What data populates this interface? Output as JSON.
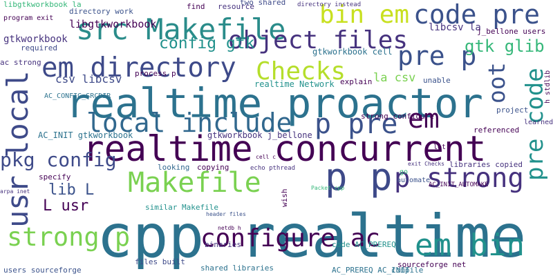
{
  "words": [
    {
      "text": "cpp realtime",
      "color": "#2c728e"
    },
    {
      "text": "realtime proactor",
      "color": "#2c728e"
    },
    {
      "text": "realtime concurrent",
      "color": "#440154"
    },
    {
      "text": "src Makefile",
      "color": "#2a8c8a"
    },
    {
      "text": "bin em",
      "color": "#c8e020"
    },
    {
      "text": "code pre",
      "color": "#3b528b"
    },
    {
      "text": "object files",
      "color": "#46327e"
    },
    {
      "text": "em directory",
      "color": "#3e4a89"
    },
    {
      "text": "pre p",
      "color": "#3b528b"
    },
    {
      "text": "Checks",
      "color": "#b5de2b"
    },
    {
      "text": "local include",
      "color": "#31688e"
    },
    {
      "text": "p pre",
      "color": "#3b528b"
    },
    {
      "text": "em",
      "color": "#440154"
    },
    {
      "text": "gtk glib",
      "color": "#35b779"
    },
    {
      "text": "config gtk",
      "color": "#21918c"
    },
    {
      "text": "libgtkworkbook",
      "color": "#440154"
    },
    {
      "text": "libgtkworkbook la",
      "color": "#35b779"
    },
    {
      "text": "gtkworkbook",
      "color": "#46327e"
    },
    {
      "text": "pkg config",
      "color": "#3e4a89"
    },
    {
      "text": "Makefile",
      "color": "#7ad151"
    },
    {
      "text": "p p",
      "color": "#3e4a89"
    },
    {
      "text": "p strong",
      "color": "#46327e"
    },
    {
      "text": "strong p",
      "color": "#7ad151"
    },
    {
      "text": "configure ac",
      "color": "#440154"
    },
    {
      "text": "em bin",
      "color": "#21918c"
    },
    {
      "text": "lib L",
      "color": "#3b528b"
    },
    {
      "text": "L usr",
      "color": "#440154"
    },
    {
      "text": "usr local",
      "color": "#3e4a89"
    },
    {
      "text": "pre code",
      "color": "#21918c"
    },
    {
      "text": "oot",
      "color": "#3b528b"
    },
    {
      "text": "strong configure",
      "color": "#440154"
    },
    {
      "text": "gtkworkbook j_bellone",
      "color": "#46327e"
    },
    {
      "text": "realtime Network",
      "color": "#21918c"
    },
    {
      "text": "la csv",
      "color": "#7ad151"
    },
    {
      "text": "csv libcsv",
      "color": "#3e4a89"
    },
    {
      "text": "AC_INIT gtkworkbook",
      "color": "#2c728e"
    },
    {
      "text": "libcsv la",
      "color": "#46327e"
    },
    {
      "text": "j_bellone users",
      "color": "#440154"
    },
    {
      "text": "directory work",
      "color": "#3b528b"
    },
    {
      "text": "find",
      "color": "#440154"
    },
    {
      "text": "resource",
      "color": "#46327e"
    },
    {
      "text": "two shared",
      "color": "#3e4a89"
    },
    {
      "text": "similar Makefile",
      "color": "#21918c"
    },
    {
      "text": "shared libraries",
      "color": "#2c728e"
    },
    {
      "text": "users sourceforge",
      "color": "#3b528b"
    },
    {
      "text": "sourceforge net",
      "color": "#440154"
    },
    {
      "text": "AC_PREREQ AC_INIT",
      "color": "#2c728e"
    },
    {
      "text": "files built",
      "color": "#3e4a89"
    },
    {
      "text": "libraries copied",
      "color": "#46327e"
    },
    {
      "text": "referenced",
      "color": "#440154"
    },
    {
      "text": "project",
      "color": "#3b528b"
    },
    {
      "text": "learned",
      "color": "#46327e"
    },
    {
      "text": "copying",
      "color": "#440154"
    },
    {
      "text": "looking",
      "color": "#31688e"
    },
    {
      "text": "echo pthread",
      "color": "#46327e"
    },
    {
      "text": "gtkworkbook cell",
      "color": "#2c728e"
    },
    {
      "text": "explain",
      "color": "#440154"
    },
    {
      "text": "unable",
      "color": "#3b528b"
    },
    {
      "text": "process p",
      "color": "#440154"
    },
    {
      "text": "ac strong",
      "color": "#46327e"
    },
    {
      "text": "program exit",
      "color": "#440154"
    },
    {
      "text": "required",
      "color": "#3e4a89"
    },
    {
      "text": "code AC_PREREQ",
      "color": "#21918c"
    },
    {
      "text": "compile",
      "color": "#2c728e"
    },
    {
      "text": "AC_INIT_AUTOMAKE",
      "color": "#440154"
    },
    {
      "text": "directory instead",
      "color": "#46327e"
    },
    {
      "text": "specify",
      "color": "#440154"
    },
    {
      "text": "binaries",
      "color": "#46327e"
    },
    {
      "text": "wish",
      "color": "#440154"
    },
    {
      "text": "automate",
      "color": "#3b528b"
    },
    {
      "text": "go",
      "color": "#35b779"
    },
    {
      "text": "lot",
      "color": "#440154"
    },
    {
      "text": "AC_CONFIG_SRCDIR",
      "color": "#2c728e"
    },
    {
      "text": "h stdlib",
      "color": "#440154"
    },
    {
      "text": "Packet cpp",
      "color": "#35b779"
    },
    {
      "text": "arpa inet",
      "color": "#46327e"
    },
    {
      "text": "netdb h",
      "color": "#440154"
    },
    {
      "text": "header files",
      "color": "#3b528b"
    },
    {
      "text": "exit Checks",
      "color": "#46327e"
    },
    {
      "text": "cell c",
      "color": "#440154"
    }
  ]
}
